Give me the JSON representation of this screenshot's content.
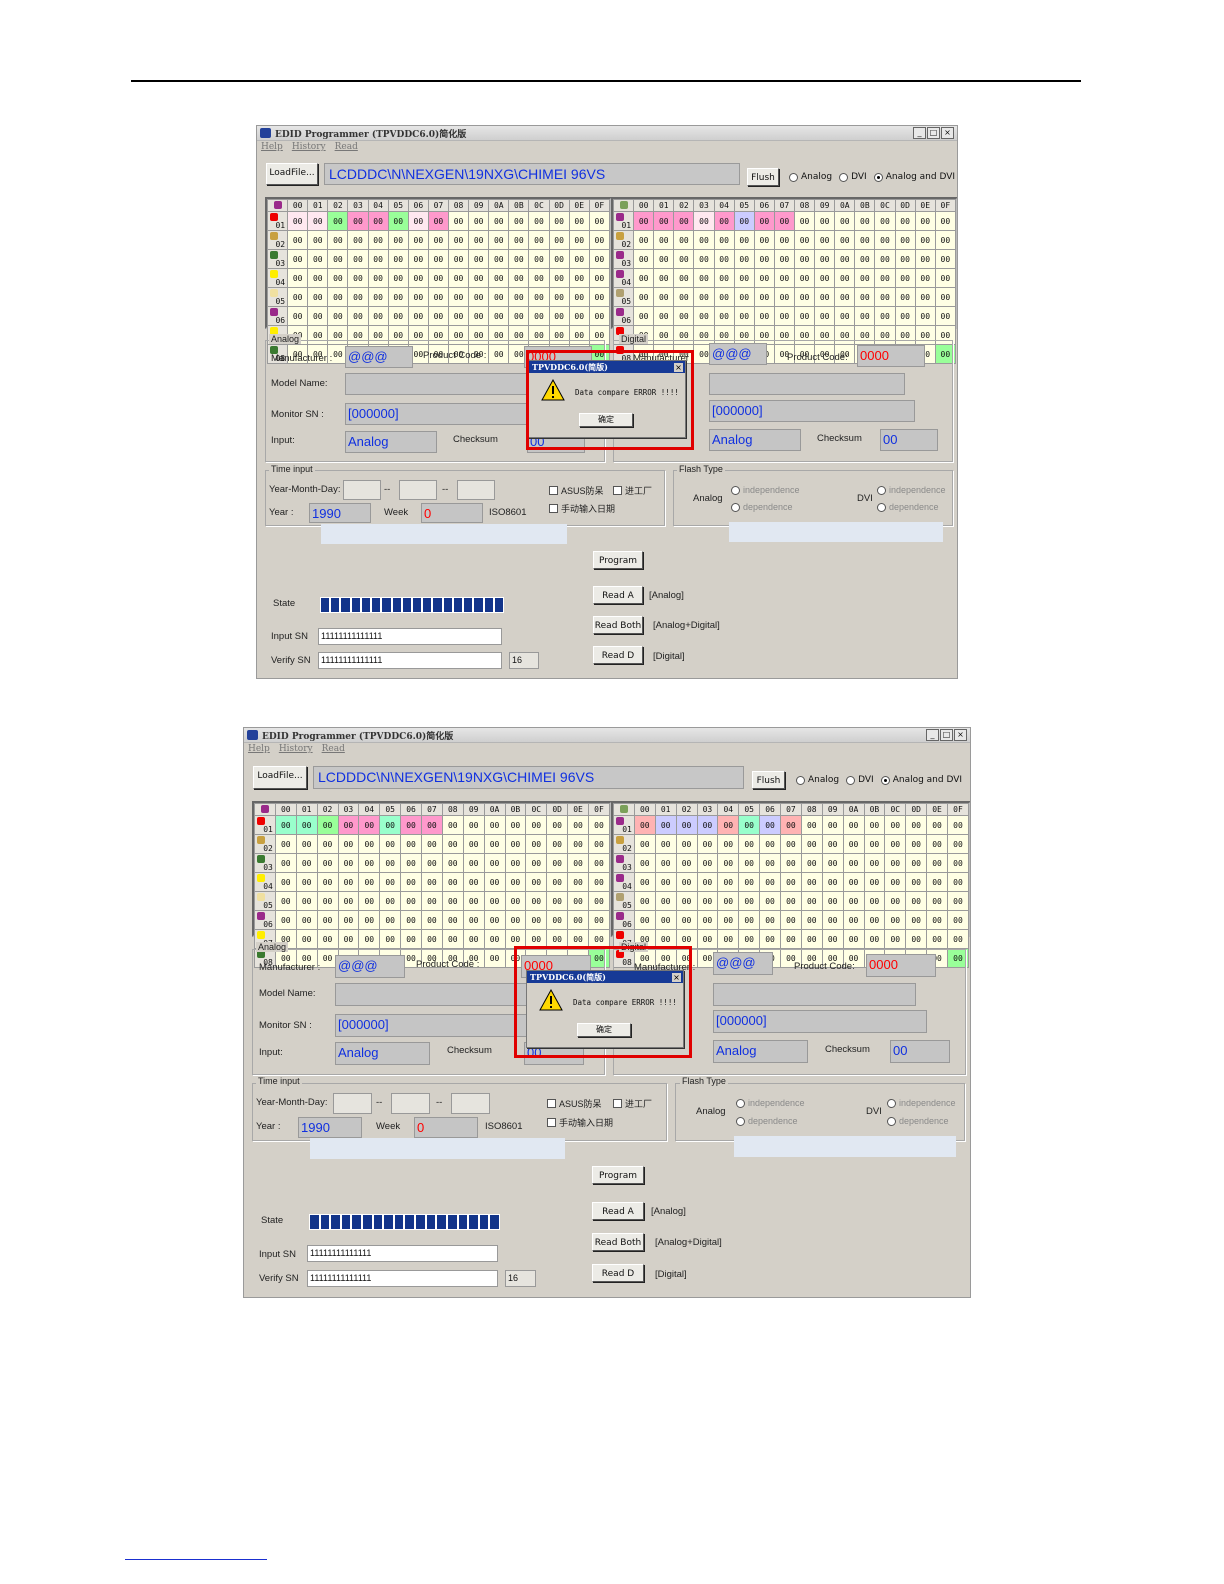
{
  "app": {
    "title": "EDID Programmer  (TPVDDC6.0)简化版",
    "menu": [
      "Help",
      "History",
      "Read"
    ],
    "win_ctrls": [
      "_",
      "□",
      "×"
    ],
    "load_button": "LoadFile...",
    "path": "LCDDDC\\N\\NEXGEN\\19NXG\\CHIMEI 96VS",
    "flash_button": "Flush",
    "mode_options": [
      {
        "label": "Analog",
        "selected": false
      },
      {
        "label": "DVI",
        "selected": false
      },
      {
        "label": "Analog and DVI",
        "selected": true
      }
    ],
    "grid": {
      "cols": [
        "00",
        "01",
        "02",
        "03",
        "04",
        "05",
        "06",
        "07",
        "08",
        "09",
        "0A",
        "0B",
        "0C",
        "0D",
        "0E",
        "0F"
      ],
      "rows": [
        "01",
        "02",
        "03",
        "04",
        "05",
        "06",
        "07",
        "08"
      ],
      "cell": "00"
    },
    "analog": {
      "group": "Analog",
      "manufacturer_label": "Manufacturer :",
      "manufacturer": "@@@",
      "product_code_label": "Product Code :",
      "product_code": "0000",
      "model_name_label": "Model Name:",
      "monitor_sn_label": "Monitor SN :",
      "monitor_sn": "[000000]",
      "input_label": "Input:",
      "input": "Analog",
      "checksum_label": "Checksum",
      "checksum": "00"
    },
    "digital": {
      "group": "Digital",
      "manufacturer_label": "Manufacturer :",
      "manufacturer": "@@@",
      "product_code_label": "Product Code:",
      "product_code": "0000",
      "monitor_sn": "[000000]",
      "input": "Analog",
      "checksum_label": "Checksum",
      "checksum": "00"
    },
    "time_input": {
      "group": "Time input",
      "ymd_label": "Year-Month-Day:",
      "sep": "--",
      "asus": "ASUS防呆",
      "factory": "进工厂",
      "manual_date": "手动输入日期",
      "year_label": "Year :",
      "year": "1990",
      "week_label": "Week",
      "week": "0",
      "iso": "ISO8601"
    },
    "flash_type": {
      "group": "Flash Type",
      "analog_label": "Analog",
      "dvi_label": "DVI",
      "opt1": "independence",
      "opt2": "dependence"
    },
    "program_button": "Program",
    "read_a_button": "Read A",
    "read_a_note": "[Analog]",
    "read_both_button": "Read Both",
    "read_both_note": "[Analog+Digital]",
    "read_d_button": "Read D",
    "read_d_note": "[Digital]",
    "state_label": "State",
    "input_sn_label": "Input SN",
    "input_sn": "11111111111111",
    "verify_sn_label": "Verify SN",
    "verify_sn": "11111111111111",
    "sn_length": "16"
  },
  "dialog": {
    "title": "TPVDDC6.0(简版)",
    "close": "×",
    "message": "Data compare ERROR !!!!",
    "ok": "确定"
  },
  "colors": {
    "page_bg": "#ffffff",
    "window_bg": "#d4d0c8",
    "value_text": "#1030e0",
    "product_code_text": "#ff0000",
    "highlight_box": "#e00000",
    "progress": "#12348a"
  },
  "screenshots": [
    {
      "name": "screenshot-1",
      "grid_left_row1_colors": [
        "c1",
        "c1",
        "c3",
        "c2",
        "c2",
        "c3",
        "c1",
        "c2",
        "",
        "",
        "",
        "",
        "",
        "",
        "",
        ""
      ],
      "grid_right_row1_colors": [
        "c2",
        "c2",
        "c2",
        "c1",
        "c2",
        "c4",
        "c2",
        "c2",
        "",
        "",
        "",
        "",
        "",
        "",
        "",
        ""
      ]
    },
    {
      "name": "screenshot-2",
      "grid_left_row1_colors": [
        "c5",
        "c5",
        "c3",
        "c2",
        "c2",
        "c5",
        "c2",
        "c2",
        "",
        "",
        "",
        "",
        "",
        "",
        "",
        ""
      ],
      "grid_right_row1_colors": [
        "c6",
        "c4",
        "c4",
        "c4",
        "c6",
        "c5",
        "c4",
        "c6",
        "",
        "",
        "",
        "",
        "",
        "",
        "",
        ""
      ]
    }
  ]
}
